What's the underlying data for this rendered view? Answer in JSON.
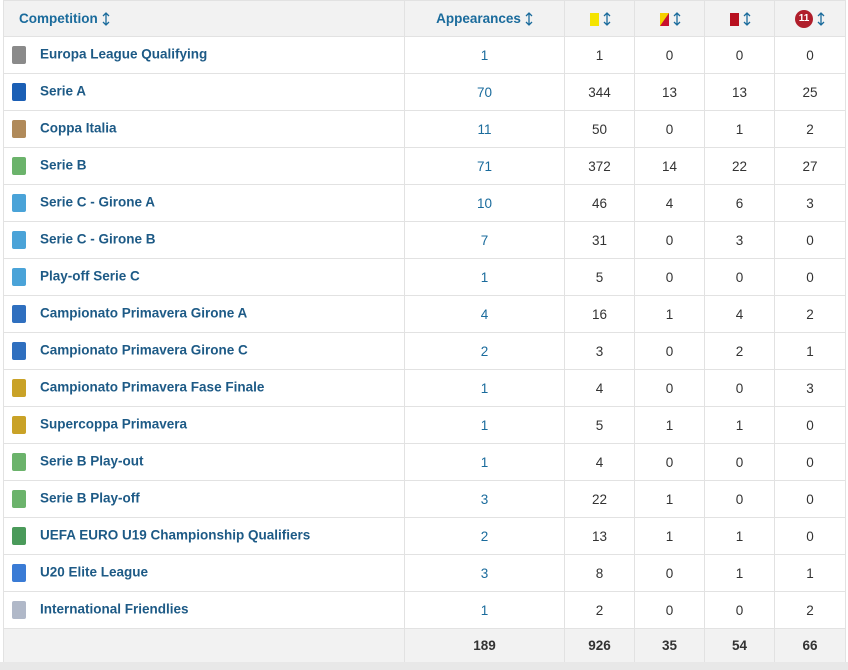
{
  "table": {
    "header": {
      "competition": "Competition",
      "appearances": "Appearances",
      "penalty": "11"
    },
    "rows": [
      [
        "Europa League Qualifying",
        1,
        1,
        0,
        0,
        0
      ],
      [
        "Serie A",
        70,
        344,
        13,
        13,
        25
      ],
      [
        "Coppa Italia",
        11,
        50,
        0,
        1,
        2
      ],
      [
        "Serie B",
        71,
        372,
        14,
        22,
        27
      ],
      [
        "Serie C - Girone A",
        10,
        46,
        4,
        6,
        3
      ],
      [
        "Serie C - Girone B",
        7,
        31,
        0,
        3,
        0
      ],
      [
        "Play-off Serie C",
        1,
        5,
        0,
        0,
        0
      ],
      [
        "Campionato Primavera Girone A",
        4,
        16,
        1,
        4,
        2
      ],
      [
        "Campionato Primavera Girone C",
        2,
        3,
        0,
        2,
        1
      ],
      [
        "Campionato Primavera Fase Finale",
        1,
        4,
        0,
        0,
        3
      ],
      [
        "Supercoppa Primavera",
        1,
        5,
        1,
        1,
        0
      ],
      [
        "Serie B Play-out",
        1,
        4,
        0,
        0,
        0
      ],
      [
        "Serie B Play-off",
        3,
        22,
        1,
        0,
        0
      ],
      [
        "UEFA EURO U19 Championship Qualifiers",
        2,
        13,
        1,
        1,
        0
      ],
      [
        "U20 Elite League",
        3,
        8,
        0,
        1,
        1
      ],
      [
        "International Friendlies",
        1,
        2,
        0,
        0,
        2
      ]
    ],
    "totals": [
      189,
      926,
      35,
      54,
      66
    ]
  }
}
